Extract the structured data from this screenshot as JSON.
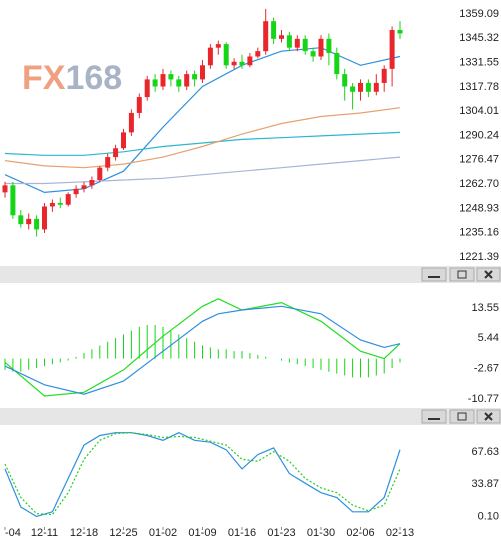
{
  "chart_data": [
    {
      "type": "candlestick",
      "watermark": [
        "FX",
        "168"
      ],
      "ylim": [
        1216.85,
        1367.0
      ],
      "yticks": [
        1359.09,
        1345.32,
        1331.55,
        1317.78,
        1304.01,
        1290.24,
        1276.47,
        {
          "value": 1262.7,
          "label": "1262.70"
        },
        1248.93,
        1235.16,
        1221.39
      ],
      "up_color": "#e8262b",
      "down_color": "#16d516",
      "open": [
        1258,
        1262,
        1245,
        1240,
        1243,
        1237,
        1250,
        1252,
        1251,
        1257,
        1260,
        1262,
        1265,
        1272,
        1278,
        1283,
        1292,
        1303,
        1312,
        1322,
        1318,
        1325,
        1322,
        1318,
        1325,
        1322,
        1330,
        1340,
        1342,
        1330,
        1332,
        1330,
        1335,
        1338,
        1355,
        1345,
        1347,
        1340,
        1345,
        1338,
        1335,
        1345,
        1337,
        1325,
        1318,
        1315,
        1320,
        1315,
        1320,
        1328,
        1350
      ],
      "high": [
        1264,
        1264,
        1248,
        1246,
        1245,
        1252,
        1254,
        1255,
        1258,
        1262,
        1264,
        1267,
        1273,
        1280,
        1285,
        1294,
        1305,
        1314,
        1324,
        1325,
        1328,
        1327,
        1324,
        1327,
        1327,
        1333,
        1342,
        1344,
        1343,
        1334,
        1336,
        1337,
        1340,
        1362,
        1357,
        1350,
        1349,
        1347,
        1347,
        1340,
        1347,
        1348,
        1340,
        1328,
        1320,
        1322,
        1322,
        1325,
        1330,
        1352,
        1355
      ],
      "low": [
        1255,
        1243,
        1238,
        1237,
        1233,
        1235,
        1247,
        1249,
        1250,
        1255,
        1258,
        1260,
        1264,
        1270,
        1276,
        1282,
        1290,
        1300,
        1310,
        1315,
        1316,
        1318,
        1315,
        1316,
        1318,
        1320,
        1328,
        1336,
        1328,
        1328,
        1328,
        1329,
        1334,
        1336,
        1342,
        1343,
        1338,
        1338,
        1336,
        1332,
        1333,
        1330,
        1322,
        1310,
        1305,
        1310,
        1312,
        1313,
        1315,
        1318,
        1345
      ],
      "close": [
        1262,
        1245,
        1240,
        1243,
        1237,
        1250,
        1252,
        1251,
        1257,
        1260,
        1262,
        1265,
        1272,
        1278,
        1283,
        1292,
        1303,
        1312,
        1322,
        1318,
        1325,
        1322,
        1318,
        1325,
        1322,
        1330,
        1340,
        1342,
        1330,
        1332,
        1330,
        1335,
        1338,
        1355,
        1345,
        1347,
        1340,
        1345,
        1338,
        1335,
        1345,
        1337,
        1325,
        1318,
        1315,
        1320,
        1315,
        1320,
        1328,
        1350,
        1348
      ],
      "series": [
        {
          "color": "#2d8fe0",
          "x": [
            0,
            5,
            10,
            15,
            20,
            25,
            30,
            35,
            40,
            45,
            50
          ],
          "values": [
            1268,
            1258,
            1260,
            1270,
            1295,
            1318,
            1330,
            1338,
            1340,
            1330,
            1335
          ]
        },
        {
          "color": "#2ab8d0",
          "x": [
            0,
            5,
            10,
            15,
            20,
            25,
            30,
            35,
            40,
            45,
            50
          ],
          "values": [
            1280,
            1279,
            1279,
            1281,
            1284,
            1286,
            1288,
            1289,
            1290,
            1291,
            1292
          ]
        },
        {
          "color": "#e8a070",
          "x": [
            0,
            5,
            10,
            15,
            20,
            25,
            30,
            35,
            40,
            45,
            50
          ],
          "values": [
            1276,
            1273,
            1272,
            1274,
            1278,
            1284,
            1291,
            1297,
            1301,
            1303,
            1306
          ]
        },
        {
          "color": "#a8b4d8",
          "x": [
            0,
            5,
            10,
            15,
            20,
            25,
            30,
            35,
            40,
            45,
            50
          ],
          "values": [
            1263,
            1263,
            1264,
            1265,
            1266,
            1268,
            1270,
            1272,
            1274,
            1276,
            1278
          ]
        }
      ]
    },
    {
      "type": "line",
      "ylim": [
        -12.4,
        19.7
      ],
      "yticks": [
        13.55,
        5.44,
        -2.67,
        -10.77
      ],
      "series": [
        {
          "type": "bar",
          "color": "#16d516",
          "values": [
            -3,
            -3.5,
            -3.5,
            -3,
            -2.5,
            -2,
            -1.5,
            -1,
            -0.5,
            0.5,
            1.5,
            2.5,
            3.5,
            4.5,
            5.5,
            6.5,
            7.5,
            8.5,
            9,
            9,
            8.5,
            7.5,
            6.5,
            5.5,
            4.5,
            3.5,
            3,
            2.5,
            2.5,
            2,
            2,
            1.5,
            1,
            0.5,
            0,
            -0.5,
            -1,
            -1.5,
            -2,
            -2.5,
            -3,
            -3.5,
            -4,
            -4.5,
            -5,
            -5,
            -5,
            -4.5,
            -4,
            -2.5,
            -1
          ]
        },
        {
          "color": "#22dd22",
          "x": [
            0,
            5,
            10,
            15,
            20,
            25,
            27,
            30,
            35,
            40,
            45,
            48,
            50
          ],
          "values": [
            -1,
            -10,
            -9,
            -3,
            6,
            14,
            16,
            13,
            15,
            10,
            2,
            0,
            4
          ]
        },
        {
          "color": "#2d8fe0",
          "x": [
            0,
            5,
            10,
            15,
            20,
            25,
            27,
            30,
            35,
            40,
            45,
            48,
            50
          ],
          "values": [
            -2,
            -7,
            -9.5,
            -6,
            2,
            10,
            12,
            13,
            14,
            12,
            5,
            3,
            4
          ]
        }
      ]
    },
    {
      "type": "line",
      "ylim": [
        -11,
        95
      ],
      "yticks": [
        67.63,
        33.87,
        {
          "value": 0.1,
          "label": "0.10"
        }
      ],
      "categories": [
        "-04",
        null,
        null,
        null,
        null,
        "12-11",
        null,
        null,
        null,
        null,
        "12-18",
        null,
        null,
        null,
        null,
        "12-25",
        null,
        null,
        null,
        null,
        "01-02",
        null,
        null,
        null,
        null,
        "01-09",
        null,
        null,
        null,
        null,
        "01-16",
        null,
        null,
        null,
        null,
        "01-23",
        null,
        null,
        null,
        null,
        "01-30",
        null,
        null,
        null,
        null,
        "02-06",
        null,
        null,
        null,
        null,
        "02-13"
      ],
      "series": [
        {
          "color": "#2d8fe0",
          "x": [
            0,
            2,
            4,
            6,
            8,
            10,
            12,
            14,
            16,
            18,
            20,
            22,
            24,
            26,
            28,
            30,
            32,
            34,
            36,
            38,
            40,
            42,
            44,
            46,
            48,
            50
          ],
          "values": [
            50,
            10,
            0,
            5,
            40,
            75,
            85,
            88,
            88,
            85,
            80,
            88,
            80,
            78,
            70,
            50,
            65,
            72,
            45,
            35,
            25,
            20,
            5,
            5,
            20,
            70
          ]
        },
        {
          "color": "#22cc22",
          "dashed": true,
          "x": [
            0,
            2,
            4,
            6,
            8,
            10,
            12,
            14,
            16,
            18,
            20,
            22,
            24,
            26,
            28,
            30,
            32,
            34,
            36,
            38,
            40,
            42,
            44,
            46,
            48,
            50
          ],
          "values": [
            55,
            20,
            3,
            2,
            25,
            60,
            80,
            87,
            88,
            86,
            83,
            84,
            83,
            79,
            75,
            60,
            58,
            68,
            58,
            40,
            30,
            25,
            12,
            6,
            12,
            50
          ]
        }
      ]
    }
  ]
}
